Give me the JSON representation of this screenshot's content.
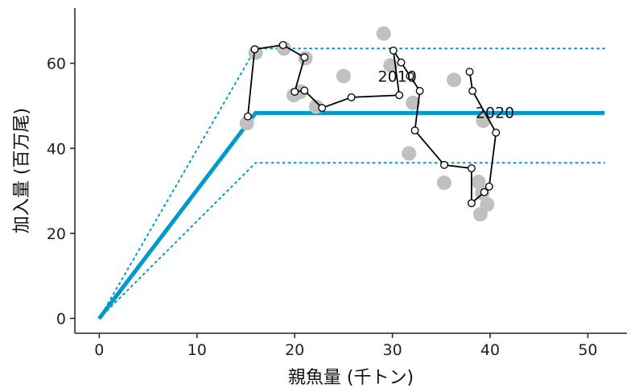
{
  "chart_data": {
    "type": "scatter",
    "xlabel": "親魚量 (千トン)",
    "ylabel": "加入量 (百万尾)",
    "xlim": [
      -2.5,
      54
    ],
    "ylim": [
      -3.5,
      73
    ],
    "x_ticks": [
      0,
      10,
      20,
      30,
      40,
      50
    ],
    "y_ticks": [
      0,
      20,
      40,
      60
    ],
    "grid": false,
    "colors": {
      "model": "#0099cc",
      "observed": "#c0c0c0",
      "trajectory": "#000000"
    },
    "model_line": {
      "points": [
        [
          0,
          0
        ],
        [
          16,
          48.3
        ],
        [
          51.7,
          48.3
        ]
      ]
    },
    "upper_bound": {
      "points": [
        [
          0,
          0
        ],
        [
          16,
          63.5
        ],
        [
          51.7,
          63.5
        ]
      ]
    },
    "lower_bound": {
      "points": [
        [
          0,
          0
        ],
        [
          16,
          36.6
        ],
        [
          51.7,
          36.6
        ]
      ]
    },
    "observed_points": [
      [
        15.1,
        45.9
      ],
      [
        16.0,
        62.5
      ],
      [
        18.9,
        63.5
      ],
      [
        19.9,
        52.5
      ],
      [
        20.6,
        53.3
      ],
      [
        21.1,
        61.2
      ],
      [
        22.2,
        49.8
      ],
      [
        25.0,
        57.0
      ],
      [
        29.1,
        67.0
      ],
      [
        29.8,
        59.5
      ],
      [
        31.7,
        38.8
      ],
      [
        32.1,
        50.7
      ],
      [
        35.3,
        31.9
      ],
      [
        36.3,
        56.1
      ],
      [
        38.8,
        32.1
      ],
      [
        39.3,
        46.5
      ],
      [
        39.2,
        29.5
      ],
      [
        39.7,
        26.8
      ],
      [
        39.0,
        24.5
      ]
    ],
    "trajectory": [
      [
        15.2,
        47.5
      ],
      [
        15.9,
        63.3
      ],
      [
        18.8,
        64.3
      ],
      [
        21.0,
        61.4
      ],
      [
        20.0,
        53.3
      ],
      [
        21.0,
        53.6
      ],
      [
        22.8,
        49.5
      ],
      [
        25.8,
        52.0
      ],
      [
        30.7,
        52.5
      ],
      [
        30.1,
        63.0
      ],
      [
        30.9,
        60.2
      ],
      [
        31.8,
        57.0
      ],
      [
        32.8,
        53.5
      ],
      [
        32.3,
        44.2
      ],
      [
        35.3,
        36.1
      ],
      [
        38.1,
        35.3
      ],
      [
        38.1,
        27.1
      ],
      [
        39.4,
        29.7
      ],
      [
        39.9,
        31.0
      ],
      [
        40.6,
        43.7
      ],
      [
        38.2,
        53.5
      ],
      [
        37.9,
        58.0
      ]
    ],
    "annotations": [
      {
        "text": "2010",
        "x": 30.5,
        "y": 57
      },
      {
        "text": "2020",
        "x": 40.5,
        "y": 48.5
      }
    ]
  }
}
